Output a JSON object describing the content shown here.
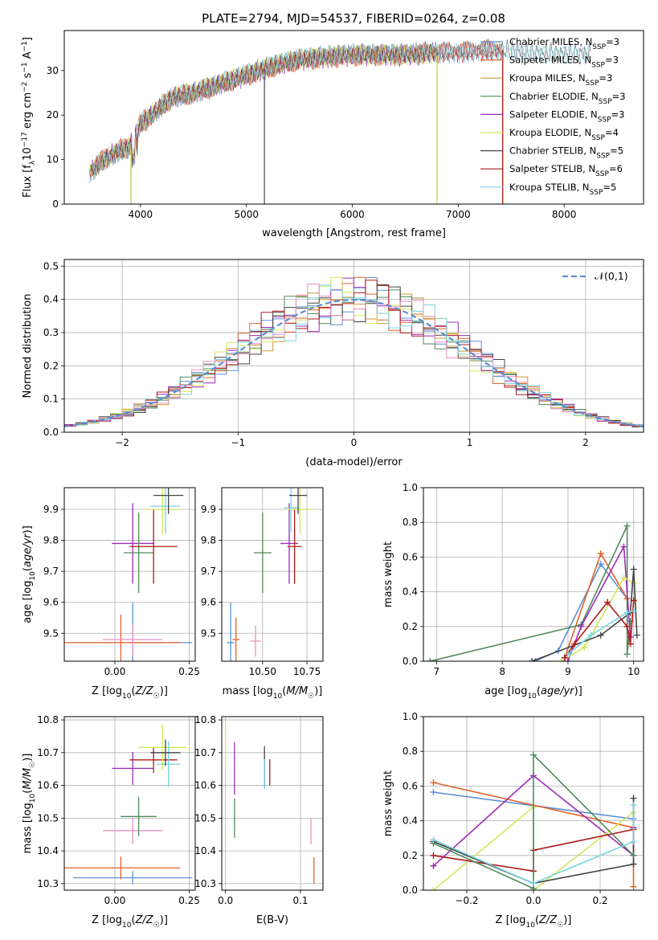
{
  "title": "PLATE=2794, MJD=54537, FIBERID=0264, z=0.08",
  "chart_data": [
    {
      "id": "spectrum",
      "type": "line",
      "xlabel": "wavelength [Angstrom, rest frame]",
      "ylabel": "Flux [f_λ10^-17 erg cm^-2 s^-1 A^-1]",
      "xlim": [
        3280,
        8750
      ],
      "ylim": [
        0,
        39
      ],
      "xticks": [
        4000,
        5000,
        6000,
        7000,
        8000
      ],
      "yticks": [
        0,
        10,
        20,
        30
      ],
      "legend_position": "upper right",
      "series": [
        {
          "name": "Chabrier MILES, N_SSP=3",
          "color": "#5b8fd6",
          "x_range": [
            3520,
            7400
          ],
          "bad_pixels": []
        },
        {
          "name": "Salpeter MILES, N_SSP=3",
          "color": "#e2632a",
          "x_range": [
            3520,
            7420
          ],
          "bad_pixels": [
            7420
          ]
        },
        {
          "name": "Kroupa MILES, N_SSP=3",
          "color": "#c99a3c",
          "x_range": [
            3520,
            6800
          ],
          "bad_pixels": [
            3910
          ]
        },
        {
          "name": "Chabrier ELODIE, N_SSP=3",
          "color": "#4f8a5c",
          "x_range": [
            3520,
            6800
          ],
          "bad_pixels": [
            6800
          ]
        },
        {
          "name": "Salpeter ELODIE, N_SSP=3",
          "color": "#9e2ab8",
          "x_range": [
            3520,
            6800
          ],
          "bad_pixels": [
            3910
          ]
        },
        {
          "name": "Kroupa ELODIE, N_SSP=4",
          "color": "#d3e65c",
          "x_range": [
            3520,
            6800
          ],
          "bad_pixels": [
            3910,
            6800
          ]
        },
        {
          "name": "Chabrier STELIB, N_SSP=5",
          "color": "#444444",
          "x_range": [
            3520,
            8250
          ],
          "bad_pixels": [
            5170
          ]
        },
        {
          "name": "Salpeter STELIB, N_SSP=6",
          "color": "#b01a1a",
          "x_range": [
            3520,
            7420
          ],
          "bad_pixels": [
            7420
          ]
        },
        {
          "name": "Kroupa STELIB, N_SSP=5",
          "color": "#78d4e0",
          "x_range": [
            3520,
            8250
          ],
          "bad_pixels": []
        }
      ],
      "continuum": {
        "x": [
          3520,
          3650,
          3800,
          3900,
          4000,
          4150,
          4300,
          4500,
          4750,
          5000,
          5250,
          5500,
          5750,
          6000,
          6250,
          6500,
          6750,
          7000,
          7250,
          7500,
          7750,
          8000,
          8250
        ],
        "y": [
          7,
          10,
          12,
          13,
          18,
          21,
          24,
          25,
          27,
          29,
          31,
          32.5,
          33,
          33.5,
          33.5,
          33.5,
          34,
          34,
          34.5,
          34.5,
          34,
          34,
          34
        ]
      }
    },
    {
      "id": "residuals",
      "type": "step-histogram",
      "xlabel": "(data-model)/error",
      "ylabel": "Normed distribution",
      "xlim": [
        -2.5,
        2.5
      ],
      "ylim": [
        0,
        0.52
      ],
      "xticks": [
        -2,
        -1,
        0,
        1,
        2
      ],
      "yticks": [
        0.0,
        0.1,
        0.2,
        0.3,
        0.4,
        0.5
      ],
      "reference": {
        "name": "𝒩(0,1)",
        "mu": 0,
        "sigma": 1,
        "color": "#5b8fd6"
      },
      "bin_width": 0.1
    },
    {
      "id": "age_vs_Z",
      "type": "errorbar",
      "xlabel": "Z [log10(Z/Z☉)]",
      "ylabel": "age [log10(age/yr)]",
      "xlim": [
        -0.17,
        0.27
      ],
      "ylim": [
        9.41,
        9.97
      ],
      "xticks": [
        0.0,
        0.25
      ],
      "yticks": [
        9.5,
        9.6,
        9.7,
        9.8,
        9.9
      ],
      "points": [
        {
          "x": 0.06,
          "y": 9.47,
          "xerr": 0.2,
          "yerr": 0.13,
          "color": "#5b8fd6"
        },
        {
          "x": 0.02,
          "y": 9.47,
          "xerr": 0.2,
          "yerr": 0.09,
          "color": "#e2632a"
        },
        {
          "x": 0.06,
          "y": 9.48,
          "xerr": 0.1,
          "yerr": 0.05,
          "color": "#e891c2"
        },
        {
          "x": 0.06,
          "y": 9.79,
          "xerr": 0.07,
          "yerr": 0.13,
          "color": "#9e2ab8"
        },
        {
          "x": 0.08,
          "y": 9.76,
          "xerr": 0.05,
          "yerr": 0.13,
          "color": "#4f8a5c"
        },
        {
          "x": 0.13,
          "y": 9.78,
          "xerr": 0.08,
          "yerr": 0.12,
          "color": "#b01a1a"
        },
        {
          "x": 0.16,
          "y": 9.9,
          "xerr": 0.06,
          "yerr": 0.08,
          "color": "#d3e65c"
        },
        {
          "x": 0.17,
          "y": 9.91,
          "xerr": 0.05,
          "yerr": 0.09,
          "color": "#78d4e0"
        },
        {
          "x": 0.18,
          "y": 9.945,
          "xerr": 0.05,
          "yerr": 0.06,
          "color": "#444444"
        }
      ]
    },
    {
      "id": "age_vs_mass",
      "type": "errorbar",
      "xlabel": "mass [log10(M/M☉)]",
      "ylabel": "",
      "xlim": [
        10.27,
        10.84
      ],
      "ylim": [
        9.41,
        9.97
      ],
      "xticks": [
        10.5,
        10.75
      ],
      "yticks": [
        9.5,
        9.6,
        9.7,
        9.8,
        9.9
      ],
      "points": [
        {
          "x": 10.32,
          "y": 9.47,
          "xerr": 0.02,
          "yerr": 0.13,
          "color": "#5b8fd6"
        },
        {
          "x": 10.35,
          "y": 9.48,
          "xerr": 0.02,
          "yerr": 0.07,
          "color": "#e2632a"
        },
        {
          "x": 10.46,
          "y": 9.475,
          "xerr": 0.03,
          "yerr": 0.05,
          "color": "#e891c2"
        },
        {
          "x": 10.5,
          "y": 9.76,
          "xerr": 0.05,
          "yerr": 0.13,
          "color": "#4f8a5c"
        },
        {
          "x": 10.65,
          "y": 9.79,
          "xerr": 0.05,
          "yerr": 0.13,
          "color": "#9e2ab8"
        },
        {
          "x": 10.68,
          "y": 9.78,
          "xerr": 0.04,
          "yerr": 0.12,
          "color": "#b01a1a"
        },
        {
          "x": 10.66,
          "y": 9.905,
          "xerr": 0.04,
          "yerr": 0.08,
          "color": "#78d4e0"
        },
        {
          "x": 10.71,
          "y": 9.9,
          "xerr": 0.08,
          "yerr": 0.08,
          "color": "#d3e65c"
        },
        {
          "x": 10.7,
          "y": 9.945,
          "xerr": 0.05,
          "yerr": 0.06,
          "color": "#444444"
        }
      ]
    },
    {
      "id": "weight_vs_age",
      "type": "line",
      "xlabel": "age [log10(age/yr)]",
      "ylabel": "mass weight",
      "xlim": [
        6.8,
        10.15
      ],
      "ylim": [
        0,
        1
      ],
      "xticks": [
        7,
        8,
        9,
        10
      ],
      "yticks": [
        0.0,
        0.2,
        0.4,
        0.6,
        0.8,
        1.0
      ],
      "series": [
        {
          "color": "#5b8fd6",
          "x": [
            8.5,
            8.85,
            9.5,
            9.9
          ],
          "y": [
            0.0,
            0.06,
            0.56,
            0.36
          ]
        },
        {
          "color": "#e2632a",
          "x": [
            8.95,
            9.5,
            9.5,
            9.9
          ],
          "y": [
            0.02,
            0.62,
            0.62,
            0.36
          ]
        },
        {
          "color": "#4f8a5c",
          "x": [
            6.9,
            9.2,
            9.9,
            9.9,
            9.95
          ],
          "y": [
            0.0,
            0.21,
            0.78,
            0.04,
            0.23
          ]
        },
        {
          "color": "#9e2ab8",
          "x": [
            9.0,
            9.2,
            9.85,
            9.95
          ],
          "y": [
            0.0,
            0.2,
            0.66,
            0.14
          ]
        },
        {
          "color": "#d3e65c",
          "x": [
            8.9,
            9.25,
            9.85,
            10.0
          ],
          "y": [
            0.0,
            0.08,
            0.48,
            0.45
          ]
        },
        {
          "color": "#444444",
          "x": [
            8.45,
            9.5,
            9.95,
            10.0,
            10.05
          ],
          "y": [
            0.0,
            0.15,
            0.28,
            0.53,
            0.15
          ]
        },
        {
          "color": "#b01a1a",
          "x": [
            8.95,
            9.1,
            9.6,
            9.9,
            9.95,
            10.0
          ],
          "y": [
            0.02,
            0.1,
            0.34,
            0.2,
            0.1,
            0.35
          ]
        },
        {
          "color": "#78d4e0",
          "x": [
            9.0,
            9.35,
            9.9,
            10.0
          ],
          "y": [
            0.04,
            0.15,
            0.28,
            0.29
          ]
        }
      ]
    },
    {
      "id": "mass_vs_Z",
      "type": "errorbar",
      "xlabel": "Z [log10(Z/Z☉)]",
      "ylabel": "mass [log10(M/M☉)]",
      "xlim": [
        -0.17,
        0.27
      ],
      "ylim": [
        10.28,
        10.81
      ],
      "xticks": [
        0.0,
        0.25
      ],
      "yticks": [
        10.3,
        10.4,
        10.5,
        10.6,
        10.7,
        10.8
      ],
      "points": [
        {
          "x": 0.06,
          "y": 10.318,
          "xerr": 0.2,
          "yerr": 0.02,
          "color": "#5b8fd6"
        },
        {
          "x": 0.02,
          "y": 10.348,
          "xerr": 0.2,
          "yerr": 0.035,
          "color": "#e2632a"
        },
        {
          "x": 0.06,
          "y": 10.462,
          "xerr": 0.1,
          "yerr": 0.04,
          "color": "#e891c2"
        },
        {
          "x": 0.06,
          "y": 10.652,
          "xerr": 0.07,
          "yerr": 0.05,
          "color": "#9e2ab8"
        },
        {
          "x": 0.08,
          "y": 10.505,
          "xerr": 0.06,
          "yerr": 0.06,
          "color": "#4f8a5c"
        },
        {
          "x": 0.13,
          "y": 10.678,
          "xerr": 0.08,
          "yerr": 0.04,
          "color": "#b01a1a"
        },
        {
          "x": 0.16,
          "y": 10.716,
          "xerr": 0.08,
          "yerr": 0.07,
          "color": "#d3e65c"
        },
        {
          "x": 0.18,
          "y": 10.665,
          "xerr": 0.04,
          "yerr": 0.07,
          "color": "#78d4e0"
        },
        {
          "x": 0.17,
          "y": 10.7,
          "xerr": 0.05,
          "yerr": 0.04,
          "color": "#444444"
        }
      ]
    },
    {
      "id": "mass_vs_ebv",
      "type": "errorbar",
      "xlabel": "E(B-V)",
      "ylabel": "",
      "xlim": [
        -0.005,
        0.13
      ],
      "ylim": [
        10.28,
        10.81
      ],
      "xticks": [
        0.0,
        0.1
      ],
      "yticks": [
        10.3,
        10.4,
        10.5,
        10.6,
        10.7,
        10.8
      ],
      "points": [
        {
          "x": 0.0,
          "y": 10.72,
          "xerr": 0,
          "yerr": 0.07,
          "color": "#d3e65c"
        },
        {
          "x": 0.012,
          "y": 10.5,
          "xerr": 0,
          "yerr": 0.06,
          "color": "#4f8a5c"
        },
        {
          "x": 0.012,
          "y": 10.652,
          "xerr": 0,
          "yerr": 0.08,
          "color": "#9e2ab8"
        },
        {
          "x": 0.052,
          "y": 10.655,
          "xerr": 0,
          "yerr": 0.065,
          "color": "#444444"
        },
        {
          "x": 0.052,
          "y": 10.635,
          "xerr": 0,
          "yerr": 0.045,
          "color": "#78d4e0"
        },
        {
          "x": 0.059,
          "y": 10.64,
          "xerr": 0,
          "yerr": 0.04,
          "color": "#b01a1a"
        },
        {
          "x": 0.114,
          "y": 10.46,
          "xerr": 0,
          "yerr": 0.04,
          "color": "#e891c2"
        },
        {
          "x": 0.118,
          "y": 10.34,
          "xerr": 0,
          "yerr": 0.04,
          "color": "#e2632a"
        }
      ]
    },
    {
      "id": "weight_vs_Z",
      "type": "line",
      "xlabel": "Z [log10(Z/Z☉)]",
      "ylabel": "mass weight",
      "xlim": [
        -0.33,
        0.33
      ],
      "ylim": [
        0,
        1
      ],
      "xticks": [
        -0.2,
        0.0,
        0.2
      ],
      "yticks": [
        0.0,
        0.2,
        0.4,
        0.6,
        0.8,
        1.0
      ],
      "series": [
        {
          "color": "#5b8fd6",
          "x": [
            -0.3,
            0.3
          ],
          "y": [
            0.565,
            0.41
          ]
        },
        {
          "color": "#e2632a",
          "x": [
            -0.3,
            0.3,
            0.3
          ],
          "y": [
            0.62,
            0.36,
            0.02
          ]
        },
        {
          "color": "#9e2ab8",
          "x": [
            -0.3,
            0.0,
            0.3,
            0.3
          ],
          "y": [
            0.14,
            0.66,
            0.2,
            0.36
          ]
        },
        {
          "color": "#d3e65c",
          "x": [
            -0.3,
            0.0,
            0.0,
            0.3
          ],
          "y": [
            0.0,
            0.48,
            0.0,
            0.45
          ]
        },
        {
          "color": "#b01a1a",
          "x": [
            -0.3,
            0.0,
            0.0,
            0.3
          ],
          "y": [
            0.2,
            0.11,
            0.23,
            0.35
          ]
        },
        {
          "color": "#444444",
          "x": [
            -0.3,
            0.0,
            0.3,
            0.3
          ],
          "y": [
            0.28,
            0.04,
            0.15,
            0.53
          ]
        },
        {
          "color": "#4f8a5c",
          "x": [
            -0.3,
            0.0,
            0.0,
            0.3
          ],
          "y": [
            0.27,
            0.01,
            0.78,
            0.2
          ]
        },
        {
          "color": "#78d4e0",
          "x": [
            -0.3,
            0.0,
            0.3,
            0.3
          ],
          "y": [
            0.29,
            0.04,
            0.28,
            0.49
          ]
        }
      ]
    }
  ]
}
